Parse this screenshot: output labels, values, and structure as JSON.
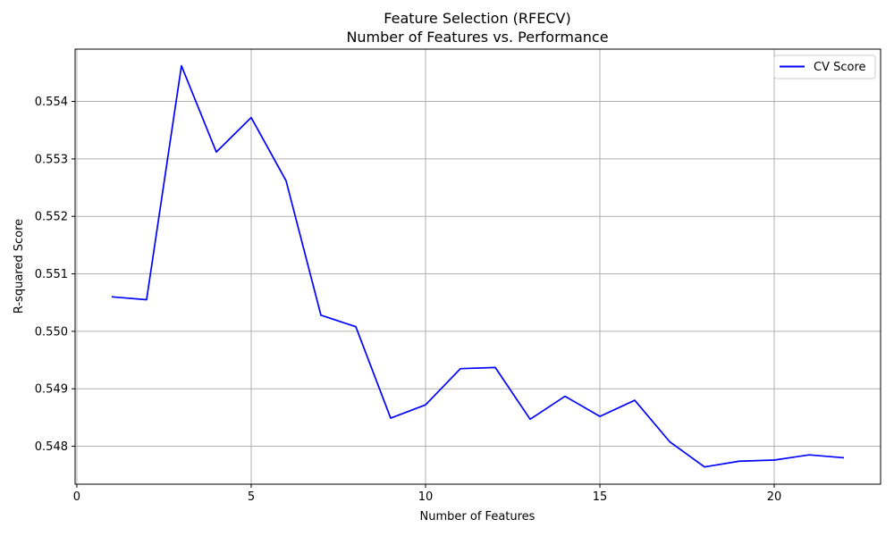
{
  "chart_data": {
    "type": "line",
    "title": "Feature Selection (RFECV)",
    "subtitle": "Number of Features vs. Performance",
    "xlabel": "Number of Features",
    "ylabel": "R-squared Score",
    "xlim": [
      -0.05,
      23.05
    ],
    "ylim": [
      0.54734,
      0.55491
    ],
    "xticks": [
      0,
      5,
      10,
      15,
      20
    ],
    "yticks": [
      0.548,
      0.549,
      0.55,
      0.551,
      0.552,
      0.553,
      0.554
    ],
    "ytick_labels": [
      "0.548",
      "0.549",
      "0.550",
      "0.551",
      "0.552",
      "0.553",
      "0.554"
    ],
    "grid": true,
    "legend_position": "top-right",
    "series": [
      {
        "name": "CV Score",
        "color": "#0000ff",
        "x": [
          1,
          2,
          3,
          4,
          5,
          6,
          7,
          8,
          9,
          10,
          11,
          12,
          13,
          14,
          15,
          16,
          17,
          18,
          19,
          20,
          21,
          22
        ],
        "y": [
          0.5506,
          0.55055,
          0.55462,
          0.55312,
          0.55372,
          0.55262,
          0.55028,
          0.55008,
          0.54849,
          0.54872,
          0.54935,
          0.54937,
          0.54847,
          0.54887,
          0.54852,
          0.5488,
          0.54808,
          0.54764,
          0.54774,
          0.54776,
          0.54785,
          0.5478
        ]
      }
    ]
  }
}
